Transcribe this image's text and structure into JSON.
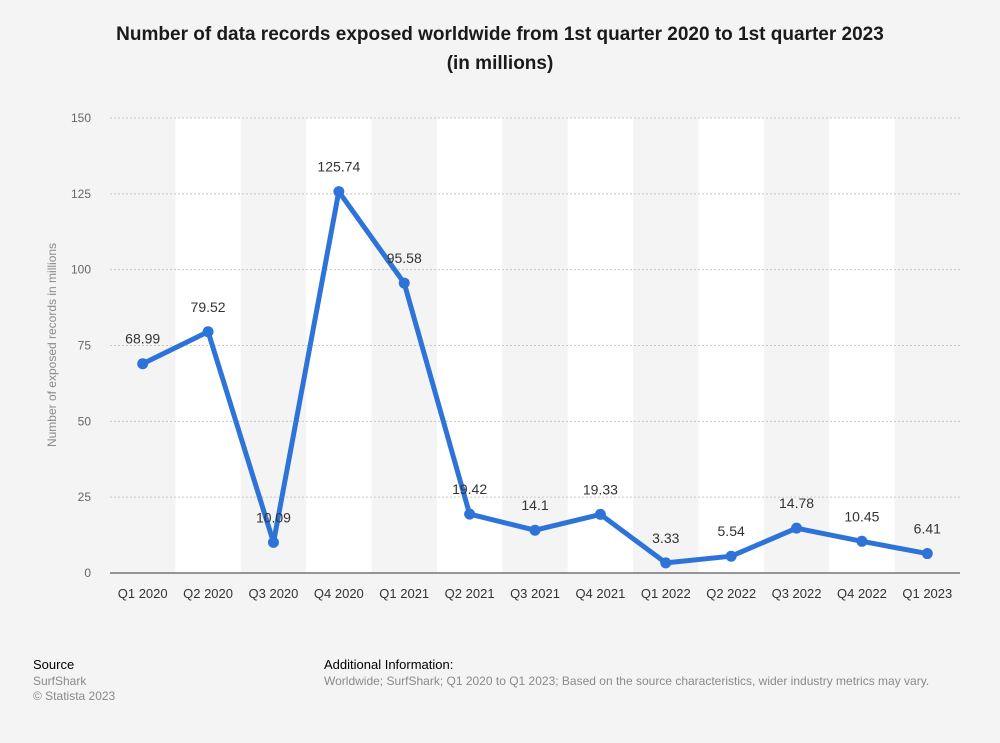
{
  "title": "Number of data records exposed worldwide from 1st quarter 2020 to 1st quarter 2023",
  "subtitle": "(in millions)",
  "source": {
    "heading": "Source",
    "name": "SurfShark",
    "copyright": "© Statista 2023"
  },
  "additional": {
    "heading": "Additional Information:",
    "text": "Worldwide; SurfShark; Q1 2020 to Q1 2023; Based on the source characteristics, wider industry metrics may vary."
  },
  "chart_data": {
    "type": "line",
    "categories": [
      "Q1 2020",
      "Q2 2020",
      "Q3 2020",
      "Q4 2020",
      "Q1 2021",
      "Q2 2021",
      "Q3 2021",
      "Q4 2021",
      "Q1 2022",
      "Q2 2022",
      "Q3 2022",
      "Q4 2022",
      "Q1 2023"
    ],
    "values": [
      68.99,
      79.52,
      10.09,
      125.74,
      95.58,
      19.42,
      14.1,
      19.33,
      3.33,
      5.54,
      14.78,
      10.45,
      6.41
    ],
    "ylabel": "Number of exposed records in millions",
    "ylim": [
      0,
      150
    ],
    "yticks": [
      0,
      25,
      50,
      75,
      100,
      125,
      150
    ],
    "grid": true,
    "line_color": "#2e74d8"
  }
}
